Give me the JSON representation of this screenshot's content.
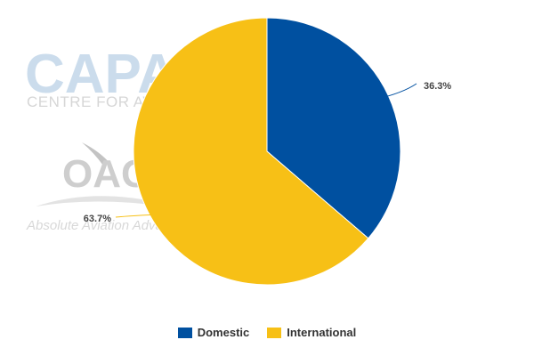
{
  "watermark": {
    "capa_text": "CAPA",
    "capa_subtext": "CENTRE FOR AVIATION",
    "oag_text": "OAG",
    "oag_tagline": "Absolute Aviation Advantage"
  },
  "chart_data": {
    "type": "pie",
    "categories": [
      "Domestic",
      "International"
    ],
    "values": [
      36.3,
      63.7
    ],
    "value_labels": [
      "36.3%",
      "63.7%"
    ],
    "colors": [
      "#0050a0",
      "#f7c016"
    ],
    "start_angle_deg": 0,
    "direction": "clockwise",
    "legend_position": "bottom"
  }
}
